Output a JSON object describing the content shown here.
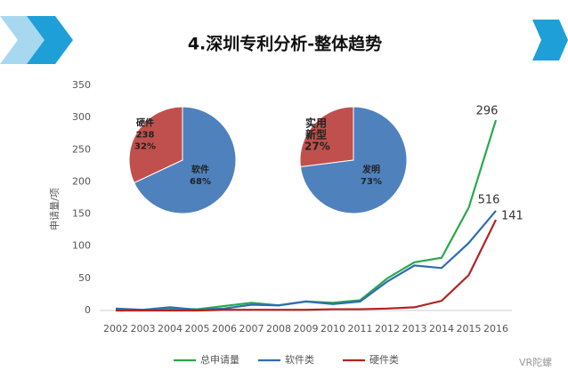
{
  "chart_data": [
    {
      "type": "line",
      "title": "4.深圳专利分析-整体趋势",
      "y_label": "申请量/项",
      "categories": [
        "2002",
        "2003",
        "2004",
        "2005",
        "2006",
        "2007",
        "2008",
        "2009",
        "2010",
        "2011",
        "2012",
        "2013",
        "2014",
        "2015",
        "2016"
      ],
      "series": [
        {
          "name": "总申请量",
          "color": "#2aa84a",
          "values": [
            2,
            1,
            3,
            2,
            7,
            12,
            8,
            14,
            12,
            16,
            50,
            75,
            82,
            160,
            296
          ],
          "end_label": "296"
        },
        {
          "name": "软件类",
          "color": "#2e6db4",
          "values": [
            3,
            1,
            5,
            1,
            3,
            9,
            8,
            14,
            10,
            14,
            45,
            70,
            66,
            105,
            155
          ],
          "end_label": "516"
        },
        {
          "name": "硬件类",
          "color": "#b22222",
          "values": [
            0,
            0,
            0,
            0,
            1,
            1,
            1,
            1,
            2,
            2,
            3,
            5,
            15,
            55,
            141
          ],
          "end_label": "141"
        }
      ],
      "ylim": [
        0,
        350
      ],
      "yticks": [
        0,
        50,
        100,
        150,
        200,
        250,
        300,
        350
      ],
      "grid": false,
      "legend": "bottom",
      "watermark": "VR陀螺"
    },
    {
      "type": "pie",
      "categories": [
        "硬件",
        "软件"
      ],
      "values": [
        32,
        68
      ],
      "value_labels": [
        "32%",
        "68%"
      ],
      "counts": [
        238,
        null
      ],
      "colors": [
        "#c0504d",
        "#4f81bd"
      ]
    },
    {
      "type": "pie",
      "categories": [
        "实用新型",
        "发明"
      ],
      "values": [
        27,
        73
      ],
      "value_labels": [
        "27%",
        "73%"
      ],
      "colors": [
        "#c0504d",
        "#4f81bd"
      ]
    }
  ]
}
